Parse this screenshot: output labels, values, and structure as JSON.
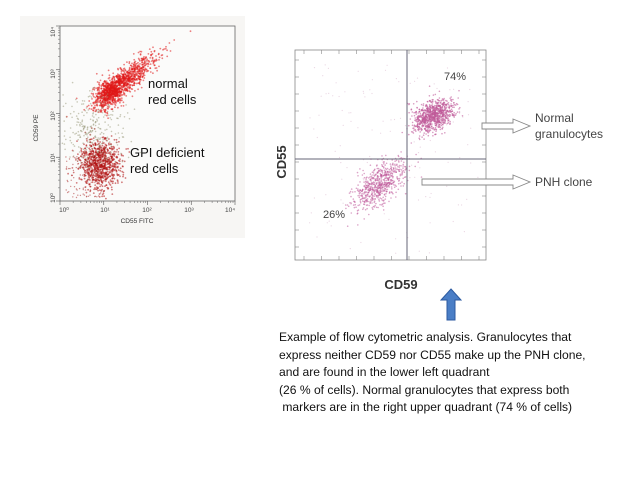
{
  "left_plot": {
    "y_axis_label": "CD59 PE",
    "x_axis_label": "CD55 FITC",
    "y_ticks": [
      "10⁴",
      "10³",
      "10²",
      "10¹",
      "10⁰"
    ],
    "x_ticks": [
      "10⁰",
      "10¹",
      "10²",
      "10³",
      "10⁴"
    ],
    "normal_label_line1": "normal",
    "normal_label_line2": "red cells",
    "gpi_label_line1": "GPI deficient",
    "gpi_label_line2": "red cells",
    "dot_color": "#e01818"
  },
  "right_plot": {
    "y_axis_label": "CD55",
    "x_axis_label": "CD59",
    "upper_right_percent": "74%",
    "lower_left_percent": "26%",
    "normal_label_line1": "Normal",
    "normal_label_line2": "granulocytes",
    "pnh_label": "PNH clone",
    "dot_color": "#c05a9a"
  },
  "pointer_arrow_color": "#4a7ec6",
  "caption": {
    "line1": "Example of flow cytometric analysis. Granulocytes that",
    "line2": "express neither CD59 nor CD55 make up the  PNH clone,",
    "line3": "and are found in the lower left quadrant",
    "line4": "(26 % of cells). Normal granulocytes that express both",
    "line5": " markers are in the right upper quadrant (74 % of cells)"
  }
}
